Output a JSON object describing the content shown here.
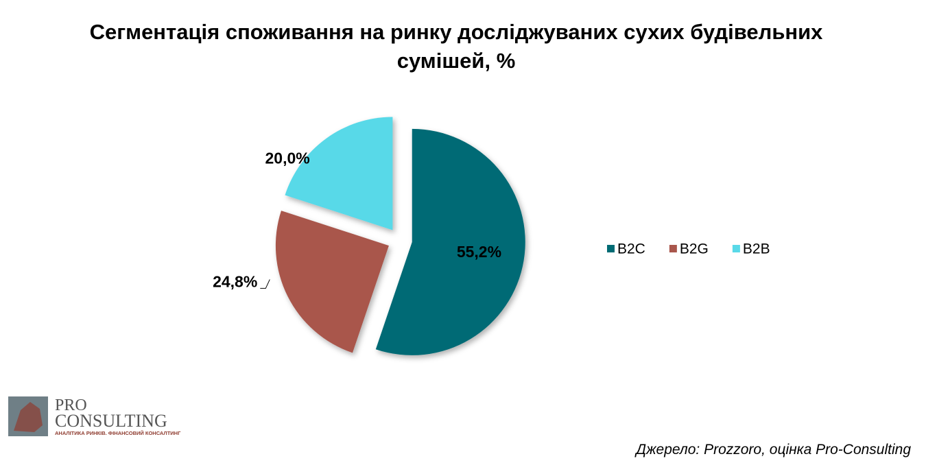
{
  "chart_data": {
    "type": "pie",
    "title": "Сегментація споживання на ринку досліджуваних сухих будівельних сумішей, %",
    "categories": [
      "B2C",
      "B2G",
      "B2B"
    ],
    "values": [
      55.2,
      24.8,
      20.0
    ],
    "value_labels": [
      "55,2%",
      "24,8%",
      "20,0%"
    ],
    "colors": [
      "#006b74",
      "#a9564c",
      "#59d9e8"
    ],
    "exploded": true,
    "legend": "right"
  },
  "logo": {
    "brand_top": "PRO",
    "brand_bottom": "CONSULTING",
    "tagline": "АНАЛІТИКА РИНКІВ. ФІНАНСОВИЙ КОНСАЛТИНГ"
  },
  "source": "Джерело: Prozzoro, оцінка Pro-Consulting"
}
